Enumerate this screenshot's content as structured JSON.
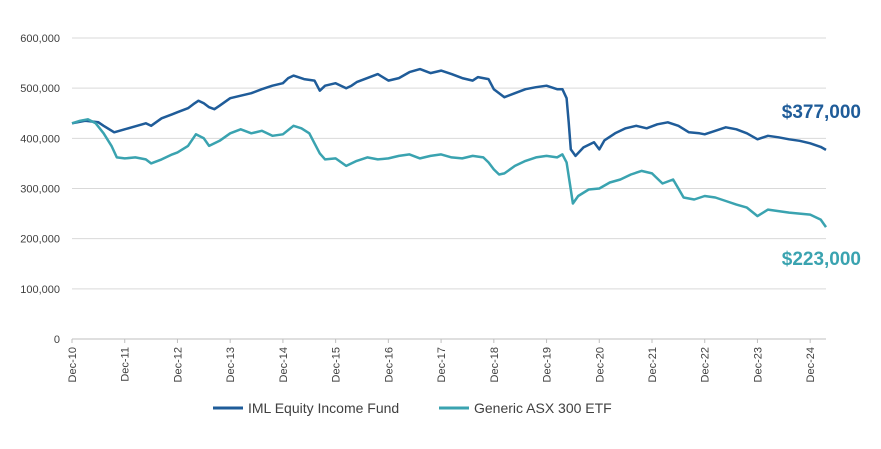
{
  "chart_data": {
    "type": "line",
    "title": "",
    "xlabel": "",
    "ylabel": "",
    "ylim": [
      0,
      600000
    ],
    "grid": "horizontal",
    "legend_position": "bottom",
    "y_ticks": [
      0,
      100000,
      200000,
      300000,
      400000,
      500000,
      600000
    ],
    "y_tick_labels": [
      "0",
      "100,000",
      "200,000",
      "300,000",
      "400,000",
      "500,000",
      "600,000"
    ],
    "x_tick_labels": [
      "Dec-10",
      "Dec-11",
      "Dec-12",
      "Dec-13",
      "Dec-14",
      "Dec-15",
      "Dec-16",
      "Dec-17",
      "Dec-18",
      "Dec-19",
      "Dec-20",
      "Dec-21",
      "Dec-22",
      "Dec-23",
      "Dec-24"
    ],
    "x_range": [
      0,
      14.3
    ],
    "series": [
      {
        "name": "IML Equity Income Fund",
        "color": "#1f5c99",
        "end_label": "$377,000",
        "points": [
          [
            0,
            430000
          ],
          [
            0.25,
            435000
          ],
          [
            0.5,
            432000
          ],
          [
            0.6,
            425000
          ],
          [
            0.8,
            412000
          ],
          [
            1.0,
            418000
          ],
          [
            1.2,
            424000
          ],
          [
            1.4,
            430000
          ],
          [
            1.5,
            425000
          ],
          [
            1.7,
            440000
          ],
          [
            1.9,
            448000
          ],
          [
            2.0,
            452000
          ],
          [
            2.2,
            460000
          ],
          [
            2.3,
            468000
          ],
          [
            2.4,
            475000
          ],
          [
            2.5,
            470000
          ],
          [
            2.6,
            462000
          ],
          [
            2.7,
            458000
          ],
          [
            2.8,
            465000
          ],
          [
            3.0,
            480000
          ],
          [
            3.2,
            485000
          ],
          [
            3.4,
            490000
          ],
          [
            3.6,
            498000
          ],
          [
            3.8,
            505000
          ],
          [
            4.0,
            510000
          ],
          [
            4.1,
            520000
          ],
          [
            4.2,
            525000
          ],
          [
            4.4,
            518000
          ],
          [
            4.6,
            515000
          ],
          [
            4.7,
            495000
          ],
          [
            4.8,
            505000
          ],
          [
            5.0,
            510000
          ],
          [
            5.2,
            500000
          ],
          [
            5.3,
            505000
          ],
          [
            5.4,
            512000
          ],
          [
            5.6,
            520000
          ],
          [
            5.8,
            528000
          ],
          [
            6.0,
            515000
          ],
          [
            6.2,
            520000
          ],
          [
            6.4,
            532000
          ],
          [
            6.6,
            538000
          ],
          [
            6.8,
            530000
          ],
          [
            7.0,
            535000
          ],
          [
            7.2,
            528000
          ],
          [
            7.4,
            520000
          ],
          [
            7.6,
            515000
          ],
          [
            7.7,
            522000
          ],
          [
            7.9,
            518000
          ],
          [
            8.0,
            498000
          ],
          [
            8.2,
            482000
          ],
          [
            8.4,
            490000
          ],
          [
            8.6,
            498000
          ],
          [
            8.8,
            502000
          ],
          [
            9.0,
            505000
          ],
          [
            9.2,
            498000
          ],
          [
            9.3,
            498000
          ],
          [
            9.38,
            480000
          ],
          [
            9.42,
            432000
          ],
          [
            9.46,
            378000
          ],
          [
            9.55,
            365000
          ],
          [
            9.7,
            382000
          ],
          [
            9.9,
            392000
          ],
          [
            10.0,
            378000
          ],
          [
            10.1,
            396000
          ],
          [
            10.3,
            410000
          ],
          [
            10.5,
            420000
          ],
          [
            10.7,
            425000
          ],
          [
            10.9,
            420000
          ],
          [
            11.1,
            428000
          ],
          [
            11.3,
            432000
          ],
          [
            11.5,
            425000
          ],
          [
            11.7,
            412000
          ],
          [
            11.9,
            410000
          ],
          [
            12.0,
            408000
          ],
          [
            12.2,
            415000
          ],
          [
            12.4,
            422000
          ],
          [
            12.6,
            418000
          ],
          [
            12.8,
            410000
          ],
          [
            13.0,
            398000
          ],
          [
            13.2,
            405000
          ],
          [
            13.4,
            402000
          ],
          [
            13.6,
            398000
          ],
          [
            13.8,
            395000
          ],
          [
            14.0,
            390000
          ],
          [
            14.2,
            383000
          ],
          [
            14.3,
            377000
          ]
        ]
      },
      {
        "name": "Generic ASX 300 ETF",
        "color": "#3aa3b0",
        "end_label": "$223,000",
        "points": [
          [
            0,
            430000
          ],
          [
            0.15,
            435000
          ],
          [
            0.3,
            438000
          ],
          [
            0.45,
            430000
          ],
          [
            0.6,
            410000
          ],
          [
            0.75,
            385000
          ],
          [
            0.85,
            362000
          ],
          [
            1.0,
            360000
          ],
          [
            1.2,
            362000
          ],
          [
            1.4,
            358000
          ],
          [
            1.5,
            350000
          ],
          [
            1.7,
            358000
          ],
          [
            1.9,
            368000
          ],
          [
            2.0,
            372000
          ],
          [
            2.2,
            385000
          ],
          [
            2.35,
            408000
          ],
          [
            2.5,
            400000
          ],
          [
            2.6,
            385000
          ],
          [
            2.8,
            395000
          ],
          [
            3.0,
            410000
          ],
          [
            3.2,
            418000
          ],
          [
            3.4,
            410000
          ],
          [
            3.6,
            415000
          ],
          [
            3.8,
            405000
          ],
          [
            4.0,
            408000
          ],
          [
            4.2,
            425000
          ],
          [
            4.35,
            420000
          ],
          [
            4.5,
            410000
          ],
          [
            4.6,
            390000
          ],
          [
            4.7,
            370000
          ],
          [
            4.8,
            358000
          ],
          [
            5.0,
            360000
          ],
          [
            5.2,
            345000
          ],
          [
            5.4,
            355000
          ],
          [
            5.6,
            362000
          ],
          [
            5.8,
            358000
          ],
          [
            6.0,
            360000
          ],
          [
            6.2,
            365000
          ],
          [
            6.4,
            368000
          ],
          [
            6.6,
            360000
          ],
          [
            6.8,
            365000
          ],
          [
            7.0,
            368000
          ],
          [
            7.2,
            362000
          ],
          [
            7.4,
            360000
          ],
          [
            7.6,
            365000
          ],
          [
            7.8,
            362000
          ],
          [
            7.9,
            352000
          ],
          [
            8.0,
            338000
          ],
          [
            8.1,
            328000
          ],
          [
            8.2,
            330000
          ],
          [
            8.4,
            345000
          ],
          [
            8.6,
            355000
          ],
          [
            8.8,
            362000
          ],
          [
            9.0,
            365000
          ],
          [
            9.2,
            362000
          ],
          [
            9.3,
            368000
          ],
          [
            9.38,
            352000
          ],
          [
            9.44,
            312000
          ],
          [
            9.5,
            270000
          ],
          [
            9.6,
            285000
          ],
          [
            9.8,
            298000
          ],
          [
            10.0,
            300000
          ],
          [
            10.2,
            312000
          ],
          [
            10.4,
            318000
          ],
          [
            10.6,
            328000
          ],
          [
            10.8,
            335000
          ],
          [
            11.0,
            330000
          ],
          [
            11.1,
            320000
          ],
          [
            11.2,
            310000
          ],
          [
            11.4,
            318000
          ],
          [
            11.5,
            300000
          ],
          [
            11.6,
            282000
          ],
          [
            11.8,
            278000
          ],
          [
            12.0,
            285000
          ],
          [
            12.2,
            282000
          ],
          [
            12.4,
            275000
          ],
          [
            12.6,
            268000
          ],
          [
            12.8,
            262000
          ],
          [
            13.0,
            245000
          ],
          [
            13.2,
            258000
          ],
          [
            13.4,
            255000
          ],
          [
            13.6,
            252000
          ],
          [
            13.8,
            250000
          ],
          [
            14.0,
            248000
          ],
          [
            14.2,
            238000
          ],
          [
            14.3,
            223000
          ]
        ]
      }
    ]
  }
}
